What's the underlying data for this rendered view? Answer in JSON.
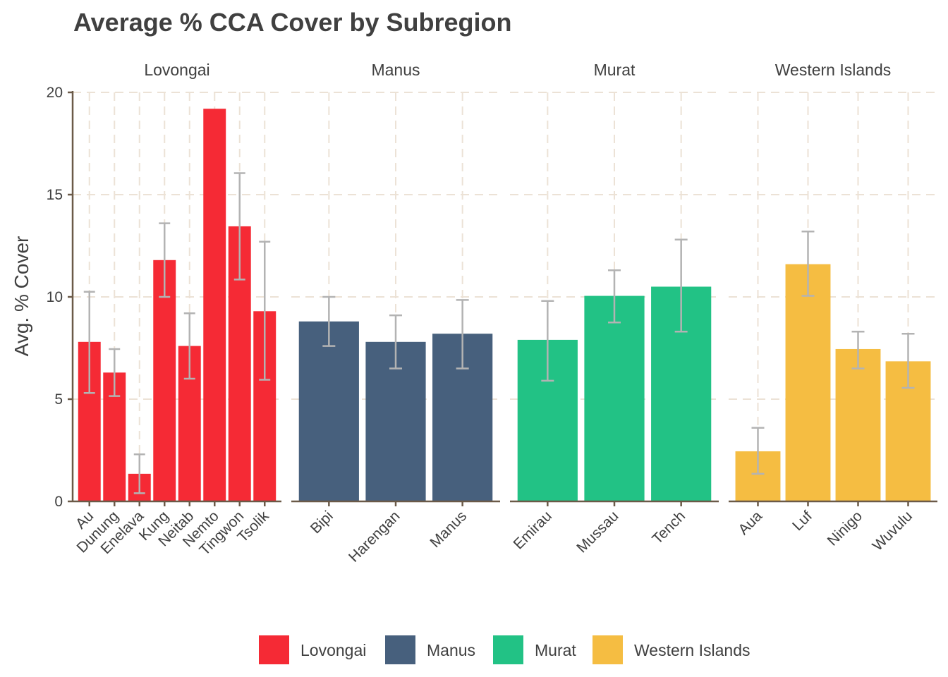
{
  "chart_data": {
    "type": "bar",
    "title": "Average % CCA Cover by Subregion",
    "xlabel": "",
    "ylabel": "Avg. % Cover",
    "ylim": [
      0,
      20
    ],
    "yticks": [
      0,
      5,
      10,
      15,
      20
    ],
    "grid": true,
    "legend_position": "bottom",
    "facets": [
      {
        "name": "Lovongai",
        "color": "#f52a35",
        "categories": [
          "Au",
          "Dunung",
          "Enelava",
          "Kung",
          "Neitab",
          "Nemto",
          "Tingwon",
          "Tsolik"
        ],
        "values": [
          7.8,
          6.3,
          1.35,
          11.8,
          7.6,
          19.2,
          13.45,
          9.3
        ],
        "err_low": [
          5.3,
          5.15,
          0.4,
          10.0,
          6.0,
          19.2,
          10.85,
          5.95
        ],
        "err_high": [
          10.25,
          7.45,
          2.3,
          13.6,
          9.2,
          19.2,
          16.05,
          12.7
        ]
      },
      {
        "name": "Manus",
        "color": "#47607d",
        "categories": [
          "Bipi",
          "Harengan",
          "Manus"
        ],
        "values": [
          8.8,
          7.8,
          8.2
        ],
        "err_low": [
          7.6,
          6.5,
          6.5
        ],
        "err_high": [
          10.0,
          9.1,
          9.85
        ]
      },
      {
        "name": "Murat",
        "color": "#22c285",
        "categories": [
          "Emirau",
          "Mussau",
          "Tench"
        ],
        "values": [
          7.9,
          10.05,
          10.5
        ],
        "err_low": [
          5.9,
          8.75,
          8.3
        ],
        "err_high": [
          9.8,
          11.3,
          12.8
        ]
      },
      {
        "name": "Western Islands",
        "color": "#f5bd42",
        "categories": [
          "Aua",
          "Luf",
          "Ninigo",
          "Wuvulu"
        ],
        "values": [
          2.45,
          11.6,
          7.45,
          6.85
        ],
        "err_low": [
          1.35,
          10.05,
          6.5,
          5.55
        ],
        "err_high": [
          3.6,
          13.2,
          8.3,
          8.2
        ]
      }
    ]
  }
}
